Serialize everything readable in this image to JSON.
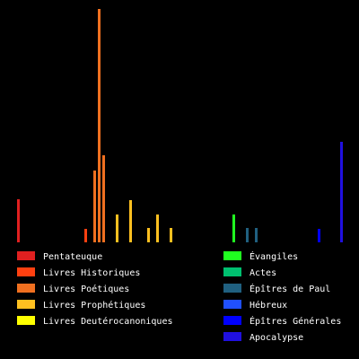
{
  "chart_data": {
    "type": "bar",
    "title": "",
    "xlabel": "",
    "ylabel": "",
    "ylim": [
      0,
      260
    ],
    "grid": false,
    "legend_position": "bottom",
    "groups": [
      {
        "name": "Pentateuque",
        "color": "#e02020"
      },
      {
        "name": "Livres Historiques",
        "color": "#ff4010"
      },
      {
        "name": "Livres Poétiques",
        "color": "#f07020"
      },
      {
        "name": "Livres Prophétiques",
        "color": "#ffc020"
      },
      {
        "name": "Livres Deutérocanoniques",
        "color": "#ffff00"
      },
      {
        "name": "Évangiles",
        "color": "#20ff20"
      },
      {
        "name": "Actes",
        "color": "#00c070"
      },
      {
        "name": "Épîtres de Paul",
        "color": "#206080"
      },
      {
        "name": "Hébreux",
        "color": "#2050ff"
      },
      {
        "name": "Épîtres Générales",
        "color": "#0000ff"
      },
      {
        "name": "Apocalypse",
        "color": "#2010e0"
      }
    ],
    "bars": [
      {
        "group": 0,
        "value": 48
      },
      {
        "group": 1,
        "value": 15
      },
      {
        "group": 2,
        "value": 80
      },
      {
        "group": 2,
        "value": 260
      },
      {
        "group": 2,
        "value": 97
      },
      {
        "group": 3,
        "value": 31
      },
      {
        "group": 3,
        "value": 47
      },
      {
        "group": 3,
        "value": 16
      },
      {
        "group": 3,
        "value": 31
      },
      {
        "group": 3,
        "value": 16
      },
      {
        "group": 5,
        "value": 31
      },
      {
        "group": 7,
        "value": 16
      },
      {
        "group": 7,
        "value": 16
      },
      {
        "group": 9,
        "value": 15
      },
      {
        "group": 10,
        "value": 112
      }
    ]
  }
}
